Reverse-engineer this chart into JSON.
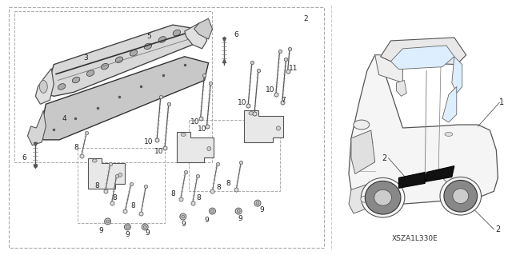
{
  "bg_color": "#ffffff",
  "fig_width": 6.4,
  "fig_height": 3.19,
  "dpi": 100,
  "diagram_code": "XSZA1L330E",
  "line_color": "#555555",
  "dashed_color": "#999999"
}
